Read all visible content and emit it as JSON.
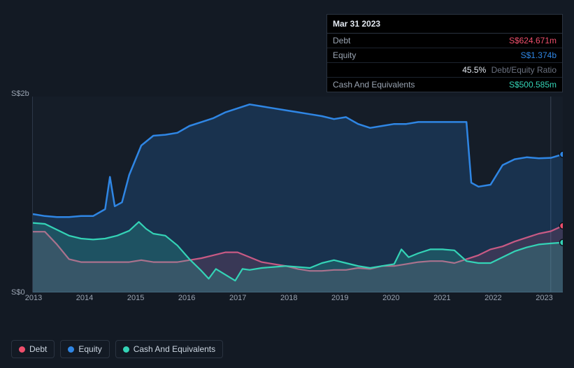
{
  "chart": {
    "type": "area",
    "background_color": "#131a24",
    "plot_background_color": "#151d28",
    "axis_color": "#2d3748",
    "axis_label_color": "#9aa4b2",
    "axis_font_size": 11,
    "vertical_rule_color": "#3a4556",
    "y_labels": [
      "S$2b",
      "S$0"
    ],
    "y_max": 2.0,
    "y_min": 0.0,
    "x_labels": [
      "2013",
      "2014",
      "2015",
      "2016",
      "2017",
      "2018",
      "2019",
      "2020",
      "2021",
      "2022",
      "2023"
    ],
    "x_min": 2012.5,
    "x_max": 2023.5,
    "series": [
      {
        "key": "debt",
        "label": "Debt",
        "color": "#ef4f6c",
        "fill_opacity": 0.18,
        "line_width": 2.2,
        "points": [
          [
            2012.5,
            0.62
          ],
          [
            2012.75,
            0.62
          ],
          [
            2013.0,
            0.49
          ],
          [
            2013.25,
            0.34
          ],
          [
            2013.5,
            0.31
          ],
          [
            2013.75,
            0.31
          ],
          [
            2014.0,
            0.31
          ],
          [
            2014.25,
            0.31
          ],
          [
            2014.5,
            0.31
          ],
          [
            2014.75,
            0.33
          ],
          [
            2015.0,
            0.31
          ],
          [
            2015.25,
            0.31
          ],
          [
            2015.5,
            0.31
          ],
          [
            2015.75,
            0.33
          ],
          [
            2016.0,
            0.35
          ],
          [
            2016.25,
            0.38
          ],
          [
            2016.5,
            0.41
          ],
          [
            2016.75,
            0.41
          ],
          [
            2017.0,
            0.36
          ],
          [
            2017.25,
            0.31
          ],
          [
            2017.5,
            0.29
          ],
          [
            2017.75,
            0.27
          ],
          [
            2018.0,
            0.24
          ],
          [
            2018.25,
            0.22
          ],
          [
            2018.5,
            0.22
          ],
          [
            2018.75,
            0.23
          ],
          [
            2019.0,
            0.23
          ],
          [
            2019.25,
            0.25
          ],
          [
            2019.5,
            0.24
          ],
          [
            2019.75,
            0.27
          ],
          [
            2020.0,
            0.27
          ],
          [
            2020.25,
            0.29
          ],
          [
            2020.5,
            0.31
          ],
          [
            2020.75,
            0.32
          ],
          [
            2021.0,
            0.32
          ],
          [
            2021.25,
            0.3
          ],
          [
            2021.5,
            0.34
          ],
          [
            2021.75,
            0.38
          ],
          [
            2022.0,
            0.44
          ],
          [
            2022.25,
            0.47
          ],
          [
            2022.5,
            0.52
          ],
          [
            2022.75,
            0.56
          ],
          [
            2023.0,
            0.6
          ],
          [
            2023.25,
            0.625
          ],
          [
            2023.5,
            0.68
          ]
        ]
      },
      {
        "key": "equity",
        "label": "Equity",
        "color": "#2f86e4",
        "fill_opacity": 0.2,
        "line_width": 2.5,
        "points": [
          [
            2012.5,
            0.8
          ],
          [
            2012.75,
            0.78
          ],
          [
            2013.0,
            0.77
          ],
          [
            2013.25,
            0.77
          ],
          [
            2013.5,
            0.78
          ],
          [
            2013.75,
            0.78
          ],
          [
            2014.0,
            0.85
          ],
          [
            2014.1,
            1.18
          ],
          [
            2014.2,
            0.88
          ],
          [
            2014.35,
            0.92
          ],
          [
            2014.5,
            1.2
          ],
          [
            2014.75,
            1.5
          ],
          [
            2015.0,
            1.6
          ],
          [
            2015.25,
            1.61
          ],
          [
            2015.5,
            1.63
          ],
          [
            2015.75,
            1.7
          ],
          [
            2016.0,
            1.74
          ],
          [
            2016.25,
            1.78
          ],
          [
            2016.5,
            1.84
          ],
          [
            2016.75,
            1.88
          ],
          [
            2017.0,
            1.92
          ],
          [
            2017.25,
            1.9
          ],
          [
            2017.5,
            1.88
          ],
          [
            2017.75,
            1.86
          ],
          [
            2018.0,
            1.84
          ],
          [
            2018.25,
            1.82
          ],
          [
            2018.5,
            1.8
          ],
          [
            2018.75,
            1.77
          ],
          [
            2019.0,
            1.79
          ],
          [
            2019.25,
            1.72
          ],
          [
            2019.5,
            1.68
          ],
          [
            2019.75,
            1.7
          ],
          [
            2020.0,
            1.72
          ],
          [
            2020.25,
            1.72
          ],
          [
            2020.5,
            1.74
          ],
          [
            2020.75,
            1.74
          ],
          [
            2021.0,
            1.74
          ],
          [
            2021.25,
            1.74
          ],
          [
            2021.5,
            1.74
          ],
          [
            2021.6,
            1.12
          ],
          [
            2021.75,
            1.08
          ],
          [
            2022.0,
            1.1
          ],
          [
            2022.25,
            1.3
          ],
          [
            2022.5,
            1.36
          ],
          [
            2022.75,
            1.38
          ],
          [
            2023.0,
            1.37
          ],
          [
            2023.25,
            1.374
          ],
          [
            2023.5,
            1.41
          ]
        ]
      },
      {
        "key": "cash",
        "label": "Cash And Equivalents",
        "color": "#34d3b6",
        "fill_opacity": 0.2,
        "line_width": 2.2,
        "points": [
          [
            2012.5,
            0.71
          ],
          [
            2012.75,
            0.7
          ],
          [
            2013.0,
            0.64
          ],
          [
            2013.25,
            0.58
          ],
          [
            2013.5,
            0.55
          ],
          [
            2013.75,
            0.54
          ],
          [
            2014.0,
            0.55
          ],
          [
            2014.25,
            0.58
          ],
          [
            2014.5,
            0.63
          ],
          [
            2014.7,
            0.72
          ],
          [
            2014.85,
            0.65
          ],
          [
            2015.0,
            0.6
          ],
          [
            2015.25,
            0.58
          ],
          [
            2015.5,
            0.48
          ],
          [
            2015.75,
            0.34
          ],
          [
            2016.0,
            0.22
          ],
          [
            2016.15,
            0.14
          ],
          [
            2016.3,
            0.24
          ],
          [
            2016.5,
            0.18
          ],
          [
            2016.7,
            0.12
          ],
          [
            2016.85,
            0.24
          ],
          [
            2017.0,
            0.23
          ],
          [
            2017.25,
            0.25
          ],
          [
            2017.5,
            0.26
          ],
          [
            2017.75,
            0.27
          ],
          [
            2018.0,
            0.26
          ],
          [
            2018.25,
            0.25
          ],
          [
            2018.5,
            0.3
          ],
          [
            2018.75,
            0.33
          ],
          [
            2019.0,
            0.3
          ],
          [
            2019.25,
            0.27
          ],
          [
            2019.5,
            0.25
          ],
          [
            2019.75,
            0.27
          ],
          [
            2020.0,
            0.29
          ],
          [
            2020.15,
            0.44
          ],
          [
            2020.3,
            0.36
          ],
          [
            2020.5,
            0.4
          ],
          [
            2020.75,
            0.44
          ],
          [
            2021.0,
            0.44
          ],
          [
            2021.25,
            0.43
          ],
          [
            2021.5,
            0.32
          ],
          [
            2021.75,
            0.3
          ],
          [
            2022.0,
            0.3
          ],
          [
            2022.25,
            0.36
          ],
          [
            2022.5,
            0.42
          ],
          [
            2022.75,
            0.46
          ],
          [
            2023.0,
            0.49
          ],
          [
            2023.25,
            0.501
          ],
          [
            2023.5,
            0.51
          ]
        ]
      }
    ],
    "end_markers": [
      {
        "series": "debt",
        "x": 2023.5,
        "y": 0.68,
        "color": "#ef4f6c"
      },
      {
        "series": "equity",
        "x": 2023.5,
        "y": 1.41,
        "color": "#2f86e4"
      },
      {
        "series": "cash",
        "x": 2023.5,
        "y": 0.51,
        "color": "#34d3b6"
      }
    ]
  },
  "tooltip": {
    "date": "Mar 31 2023",
    "rows": [
      {
        "label": "Debt",
        "value": "S$624.671m",
        "color": "#ef4f6c"
      },
      {
        "label": "Equity",
        "value": "S$1.374b",
        "color": "#2f86e4"
      },
      {
        "label": "",
        "value": "45.5%",
        "suffix": "Debt/Equity Ratio",
        "color": "#e2e8f0"
      },
      {
        "label": "Cash And Equivalents",
        "value": "S$500.585m",
        "color": "#34d3b6"
      }
    ]
  },
  "legend": {
    "items": [
      {
        "key": "debt",
        "label": "Debt",
        "color": "#ef4f6c"
      },
      {
        "key": "equity",
        "label": "Equity",
        "color": "#2f86e4"
      },
      {
        "key": "cash",
        "label": "Cash And Equivalents",
        "color": "#34d3b6"
      }
    ]
  }
}
